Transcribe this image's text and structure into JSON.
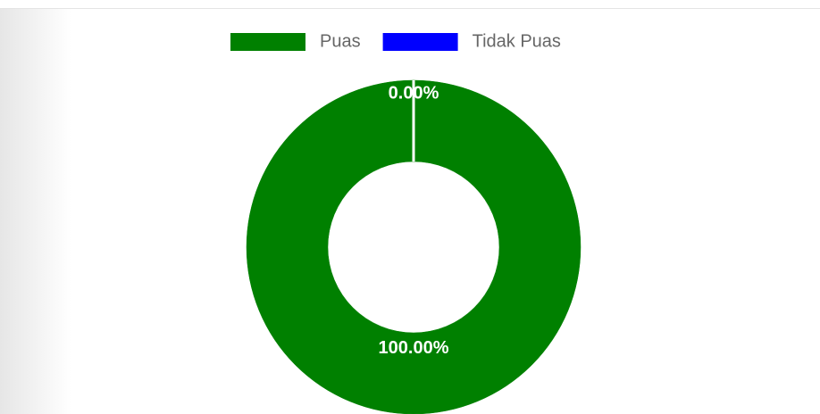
{
  "chart_data": {
    "type": "doughnut",
    "categories": [
      "Puas",
      "Tidak Puas"
    ],
    "values": [
      100,
      0
    ],
    "value_labels": [
      "100.00%",
      "0.00%"
    ],
    "colors": [
      "#008000",
      "#0000ff"
    ],
    "legend": "top"
  }
}
